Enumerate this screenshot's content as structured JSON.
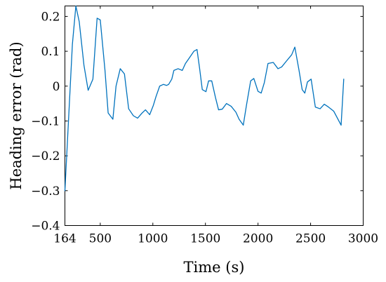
{
  "chart_data": {
    "type": "line",
    "title": "",
    "xlabel": "Time (s)",
    "ylabel": "Heading error (rad)",
    "xlim": [
      164,
      3000
    ],
    "ylim": [
      -0.4,
      0.23
    ],
    "xticks": [
      164,
      500,
      1000,
      1500,
      2000,
      2500,
      3000
    ],
    "xtick_labels": [
      "164",
      "500",
      "1000",
      "1500",
      "2000",
      "2500",
      "3000"
    ],
    "yticks": [
      -0.4,
      -0.3,
      -0.2,
      -0.1,
      0,
      0.1,
      0.2
    ],
    "ytick_labels": [
      "−0.4",
      "−0.3",
      "−0.2",
      "−0.1",
      "0",
      "0.1",
      "0.2"
    ],
    "grid": false,
    "legend": "none",
    "series": [
      {
        "color": "#0072BD",
        "x": [
          164,
          235,
          268,
          300,
          345,
          385,
          430,
          470,
          500,
          545,
          575,
          620,
          650,
          690,
          730,
          770,
          815,
          855,
          895,
          930,
          970,
          1005,
          1030,
          1065,
          1100,
          1130,
          1150,
          1180,
          1200,
          1240,
          1280,
          1310,
          1345,
          1390,
          1420,
          1445,
          1470,
          1505,
          1530,
          1560,
          1595,
          1625,
          1660,
          1700,
          1745,
          1790,
          1820,
          1860,
          1890,
          1930,
          1960,
          2000,
          2030,
          2060,
          2095,
          2145,
          2190,
          2225,
          2265,
          2320,
          2350,
          2390,
          2420,
          2445,
          2470,
          2505,
          2545,
          2590,
          2630,
          2670,
          2720,
          2755,
          2790,
          2815
        ],
        "y": [
          -0.3,
          0.12,
          0.23,
          0.185,
          0.06,
          -0.012,
          0.02,
          0.195,
          0.19,
          0.045,
          -0.077,
          -0.095,
          0.0,
          0.05,
          0.035,
          -0.065,
          -0.085,
          -0.092,
          -0.078,
          -0.068,
          -0.082,
          -0.055,
          -0.03,
          0.0,
          0.005,
          0.002,
          0.005,
          0.02,
          0.045,
          0.05,
          0.045,
          0.065,
          0.08,
          0.1,
          0.105,
          0.05,
          -0.01,
          -0.016,
          0.015,
          0.015,
          -0.032,
          -0.068,
          -0.066,
          -0.05,
          -0.058,
          -0.075,
          -0.095,
          -0.112,
          -0.055,
          0.015,
          0.022,
          -0.015,
          -0.02,
          0.01,
          0.065,
          0.068,
          0.05,
          0.055,
          0.07,
          0.09,
          0.112,
          0.045,
          -0.01,
          -0.02,
          0.012,
          0.02,
          -0.06,
          -0.065,
          -0.052,
          -0.06,
          -0.072,
          -0.092,
          -0.112,
          0.02
        ]
      }
    ]
  }
}
